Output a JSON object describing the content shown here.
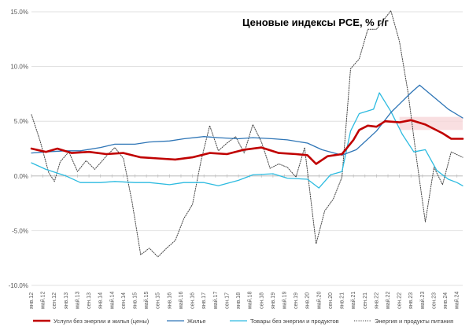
{
  "chart_data": {
    "type": "line",
    "title": "Ценовые индексы PCE, % г/г",
    "xlabel": "",
    "ylabel": "",
    "ylim": [
      -10,
      15
    ],
    "y_ticks": [
      "15.0%",
      "10.0%",
      "5.0%",
      "0.0%",
      "-5.0%",
      "-10.0%"
    ],
    "y_tick_values": [
      15,
      10,
      5,
      0,
      -5,
      -10
    ],
    "grid": true,
    "legend_position": "bottom",
    "x_start": "2012-01",
    "x_end": "2024-07",
    "x_tick_labels": [
      "янв.12",
      "май.12",
      "сен.12",
      "янв.13",
      "май.13",
      "сен.13",
      "янв.14",
      "май.14",
      "сен.14",
      "янв.15",
      "май.15",
      "сен.15",
      "янв.16",
      "май.16",
      "сен.16",
      "янв.17",
      "май.17",
      "сен.17",
      "янв.18",
      "май.18",
      "сен.18",
      "янв.19",
      "май.19",
      "сен.19",
      "янв.20",
      "май.20",
      "сен.20",
      "янв.21",
      "май.21",
      "сен.21",
      "янв.22",
      "май.22",
      "сен.22",
      "янв.23",
      "май.23",
      "сен.23",
      "янв.24",
      "май.24"
    ],
    "x_tick_dates": [
      "2012-01",
      "2012-05",
      "2012-09",
      "2013-01",
      "2013-05",
      "2013-09",
      "2014-01",
      "2014-05",
      "2014-09",
      "2015-01",
      "2015-05",
      "2015-09",
      "2016-01",
      "2016-05",
      "2016-09",
      "2017-01",
      "2017-05",
      "2017-09",
      "2018-01",
      "2018-05",
      "2018-09",
      "2019-01",
      "2019-05",
      "2019-09",
      "2020-01",
      "2020-05",
      "2020-09",
      "2021-01",
      "2021-05",
      "2021-09",
      "2022-01",
      "2022-05",
      "2022-09",
      "2023-01",
      "2023-05",
      "2023-09",
      "2024-01",
      "2024-05"
    ],
    "highlight_band": {
      "x": [
        "2022-09",
        "2024-07"
      ],
      "y": [
        4.2,
        5.4
      ],
      "color": "#f8d7da"
    },
    "series": [
      {
        "name": "Услуги без энергии и жилья (цены)",
        "color": "#c00000",
        "style": "solid",
        "points": [
          [
            "2012-01",
            2.5
          ],
          [
            "2012-06",
            2.2
          ],
          [
            "2012-10",
            2.5
          ],
          [
            "2013-03",
            2.1
          ],
          [
            "2013-09",
            2.2
          ],
          [
            "2014-03",
            2.0
          ],
          [
            "2014-09",
            2.1
          ],
          [
            "2015-03",
            1.7
          ],
          [
            "2015-09",
            1.6
          ],
          [
            "2016-03",
            1.5
          ],
          [
            "2016-09",
            1.7
          ],
          [
            "2017-03",
            2.1
          ],
          [
            "2017-09",
            2.0
          ],
          [
            "2018-03",
            2.4
          ],
          [
            "2018-09",
            2.6
          ],
          [
            "2019-03",
            2.1
          ],
          [
            "2019-09",
            2.0
          ],
          [
            "2020-01",
            1.9
          ],
          [
            "2020-04",
            1.1
          ],
          [
            "2020-08",
            1.8
          ],
          [
            "2021-01",
            2.0
          ],
          [
            "2021-05",
            3.3
          ],
          [
            "2021-07",
            4.2
          ],
          [
            "2021-10",
            4.6
          ],
          [
            "2022-01",
            4.5
          ],
          [
            "2022-04",
            5.0
          ],
          [
            "2022-09",
            4.9
          ],
          [
            "2023-01",
            5.1
          ],
          [
            "2023-06",
            4.7
          ],
          [
            "2023-12",
            3.9
          ],
          [
            "2024-03",
            3.4
          ],
          [
            "2024-07",
            3.4
          ]
        ]
      },
      {
        "name": "Жилье",
        "color": "#2e75b6",
        "style": "solid",
        "points": [
          [
            "2012-01",
            2.1
          ],
          [
            "2012-06",
            2.2
          ],
          [
            "2013-01",
            2.3
          ],
          [
            "2013-06",
            2.3
          ],
          [
            "2014-01",
            2.6
          ],
          [
            "2014-06",
            2.9
          ],
          [
            "2015-01",
            2.9
          ],
          [
            "2015-06",
            3.1
          ],
          [
            "2016-01",
            3.2
          ],
          [
            "2016-06",
            3.4
          ],
          [
            "2017-01",
            3.6
          ],
          [
            "2017-06",
            3.5
          ],
          [
            "2018-01",
            3.4
          ],
          [
            "2018-06",
            3.5
          ],
          [
            "2019-01",
            3.4
          ],
          [
            "2019-06",
            3.3
          ],
          [
            "2020-01",
            3.0
          ],
          [
            "2020-06",
            2.4
          ],
          [
            "2021-01",
            1.9
          ],
          [
            "2021-06",
            2.4
          ],
          [
            "2022-01",
            4.1
          ],
          [
            "2022-06",
            5.8
          ],
          [
            "2023-01",
            7.6
          ],
          [
            "2023-04",
            8.3
          ],
          [
            "2023-09",
            7.2
          ],
          [
            "2024-02",
            6.1
          ],
          [
            "2024-07",
            5.3
          ]
        ]
      },
      {
        "name": "Товары без энергии и продуктов",
        "color": "#2dbbe0",
        "style": "solid",
        "points": [
          [
            "2012-01",
            1.2
          ],
          [
            "2012-06",
            0.6
          ],
          [
            "2013-01",
            0.0
          ],
          [
            "2013-06",
            -0.6
          ],
          [
            "2014-01",
            -0.6
          ],
          [
            "2014-06",
            -0.5
          ],
          [
            "2015-01",
            -0.6
          ],
          [
            "2015-06",
            -0.6
          ],
          [
            "2016-01",
            -0.8
          ],
          [
            "2016-06",
            -0.6
          ],
          [
            "2017-01",
            -0.6
          ],
          [
            "2017-06",
            -0.9
          ],
          [
            "2018-01",
            -0.4
          ],
          [
            "2018-06",
            0.1
          ],
          [
            "2019-01",
            0.2
          ],
          [
            "2019-06",
            -0.2
          ],
          [
            "2020-01",
            -0.3
          ],
          [
            "2020-05",
            -1.1
          ],
          [
            "2020-09",
            0.1
          ],
          [
            "2021-01",
            0.4
          ],
          [
            "2021-04",
            4.1
          ],
          [
            "2021-07",
            5.7
          ],
          [
            "2021-12",
            6.1
          ],
          [
            "2022-02",
            7.6
          ],
          [
            "2022-06",
            5.9
          ],
          [
            "2022-10",
            3.8
          ],
          [
            "2023-02",
            2.2
          ],
          [
            "2023-06",
            2.4
          ],
          [
            "2023-10",
            0.5
          ],
          [
            "2024-02",
            -0.3
          ],
          [
            "2024-05",
            -0.6
          ],
          [
            "2024-07",
            -0.9
          ]
        ]
      },
      {
        "name": "Энергия и продукты питания",
        "color": "#404040",
        "style": "dotted",
        "points": [
          [
            "2012-01",
            5.6
          ],
          [
            "2012-04",
            3.2
          ],
          [
            "2012-07",
            0.3
          ],
          [
            "2012-09",
            -0.5
          ],
          [
            "2012-11",
            1.3
          ],
          [
            "2013-02",
            2.2
          ],
          [
            "2013-05",
            0.4
          ],
          [
            "2013-08",
            1.4
          ],
          [
            "2013-11",
            0.6
          ],
          [
            "2014-03",
            1.8
          ],
          [
            "2014-06",
            2.6
          ],
          [
            "2014-09",
            1.6
          ],
          [
            "2014-12",
            -2.4
          ],
          [
            "2015-03",
            -7.2
          ],
          [
            "2015-06",
            -6.6
          ],
          [
            "2015-09",
            -7.4
          ],
          [
            "2015-12",
            -6.6
          ],
          [
            "2016-03",
            -5.9
          ],
          [
            "2016-06",
            -3.9
          ],
          [
            "2016-09",
            -2.6
          ],
          [
            "2016-12",
            1.4
          ],
          [
            "2017-03",
            4.6
          ],
          [
            "2017-06",
            2.3
          ],
          [
            "2017-09",
            3.0
          ],
          [
            "2017-12",
            3.6
          ],
          [
            "2018-03",
            2.1
          ],
          [
            "2018-06",
            4.7
          ],
          [
            "2018-09",
            3.1
          ],
          [
            "2018-12",
            0.7
          ],
          [
            "2019-03",
            1.1
          ],
          [
            "2019-06",
            0.8
          ],
          [
            "2019-09",
            -0.1
          ],
          [
            "2019-12",
            2.6
          ],
          [
            "2020-04",
            -6.2
          ],
          [
            "2020-07",
            -3.2
          ],
          [
            "2020-10",
            -2.1
          ],
          [
            "2021-01",
            -0.1
          ],
          [
            "2021-04",
            9.8
          ],
          [
            "2021-07",
            10.7
          ],
          [
            "2021-10",
            13.4
          ],
          [
            "2022-01",
            13.4
          ],
          [
            "2022-06",
            15.1
          ],
          [
            "2022-09",
            12.3
          ],
          [
            "2022-12",
            7.6
          ],
          [
            "2023-03",
            1.5
          ],
          [
            "2023-06",
            -4.2
          ],
          [
            "2023-09",
            0.8
          ],
          [
            "2023-12",
            -0.8
          ],
          [
            "2024-03",
            2.2
          ],
          [
            "2024-07",
            1.7
          ]
        ]
      }
    ]
  }
}
